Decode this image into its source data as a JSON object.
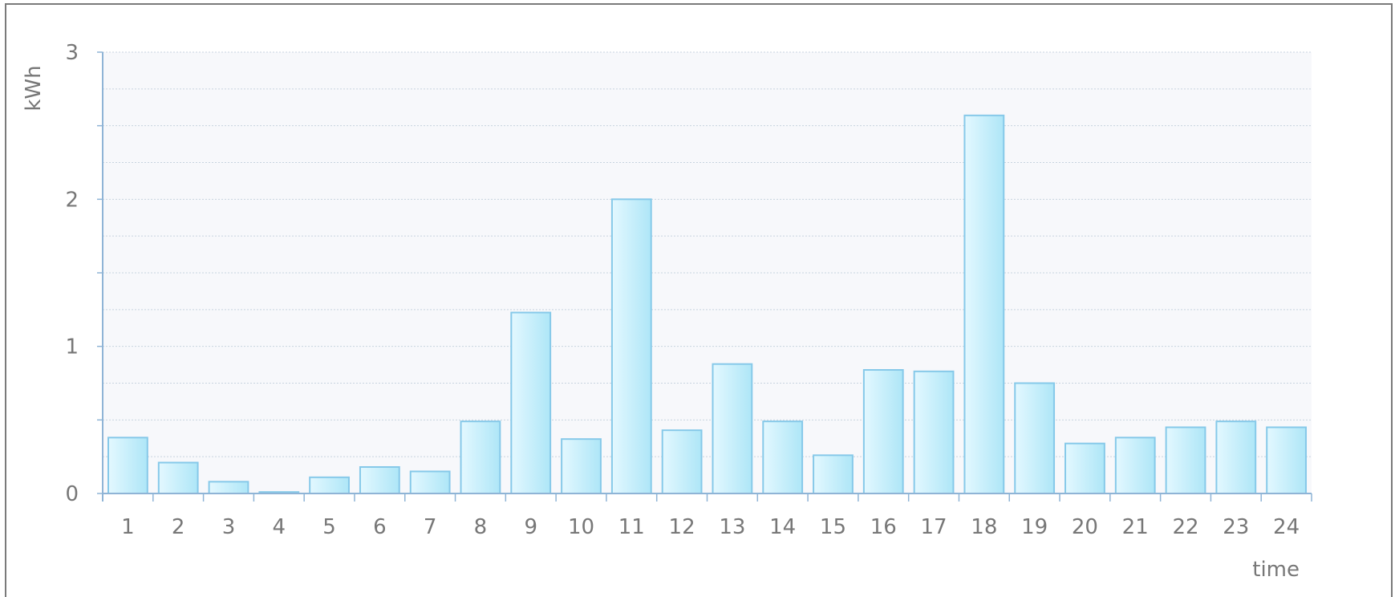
{
  "chart_data": {
    "type": "bar",
    "title": "",
    "xlabel": "time",
    "ylabel": "kWh",
    "categories": [
      "1",
      "2",
      "3",
      "4",
      "5",
      "6",
      "7",
      "8",
      "9",
      "10",
      "11",
      "12",
      "13",
      "14",
      "15",
      "16",
      "17",
      "18",
      "19",
      "20",
      "21",
      "22",
      "23",
      "24"
    ],
    "values": [
      0.38,
      0.21,
      0.08,
      0.01,
      0.11,
      0.18,
      0.15,
      0.49,
      1.23,
      0.37,
      2.0,
      0.43,
      0.88,
      0.49,
      0.26,
      0.84,
      0.83,
      2.57,
      0.75,
      0.34,
      0.38,
      0.45,
      0.49,
      0.45
    ],
    "ylim": [
      0,
      3
    ],
    "yticks": [
      0,
      1,
      2,
      3
    ],
    "ytick_labels": [
      "0",
      "1",
      "2",
      "3"
    ],
    "grid": true,
    "legend": false,
    "colors": {
      "bar_fill_light": "#e3f8ff",
      "bar_fill_dark": "#aee6f7",
      "bar_stroke": "#86c9e9",
      "axis": "#8fb4d6",
      "grid": "#c7d3df",
      "plot_bg": "#f7f8fb"
    }
  }
}
